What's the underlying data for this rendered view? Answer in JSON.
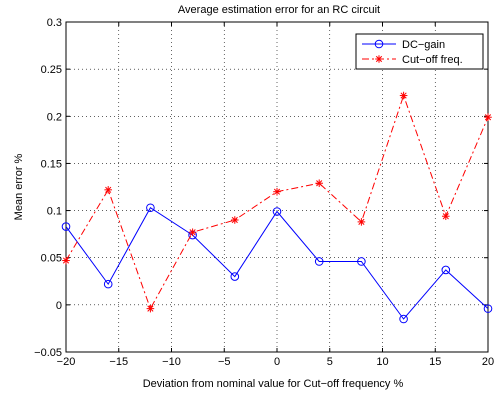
{
  "chart_data": {
    "type": "line",
    "title": "Average estimation error for an RC circuit",
    "xlabel": "Deviation from nominal value for Cut−off frequency %",
    "ylabel": "Mean error %",
    "xlim": [
      -20,
      20
    ],
    "ylim": [
      -0.05,
      0.3
    ],
    "xticks": [
      -20,
      -15,
      -10,
      -5,
      0,
      5,
      10,
      15,
      20
    ],
    "xtick_labels": [
      "−20",
      "−15",
      "−10",
      "−5",
      "0",
      "5",
      "10",
      "15",
      "20"
    ],
    "yticks": [
      -0.05,
      0,
      0.05,
      0.1,
      0.15,
      0.2,
      0.25,
      0.3
    ],
    "ytick_labels": [
      "−0.05",
      "0",
      "0.05",
      "0.1",
      "0.15",
      "0.2",
      "0.25",
      "0.3"
    ],
    "grid": true,
    "legend_position": "top-right",
    "x": [
      -20,
      -16,
      -12,
      -8,
      -4,
      0,
      4,
      8,
      12,
      16,
      20
    ],
    "series": [
      {
        "name": "DC−gain",
        "values": [
          0.083,
          0.022,
          0.103,
          0.074,
          0.03,
          0.099,
          0.046,
          0.046,
          -0.015,
          0.037,
          -0.004
        ],
        "color": "#0000ff",
        "line_style": "solid",
        "marker": "circle"
      },
      {
        "name": "Cut−off freq.",
        "values": [
          0.047,
          0.122,
          -0.004,
          0.077,
          0.09,
          0.12,
          0.129,
          0.088,
          0.222,
          0.094,
          0.199
        ],
        "color": "#ff0000",
        "line_style": "dash-dot",
        "marker": "asterisk"
      }
    ]
  }
}
